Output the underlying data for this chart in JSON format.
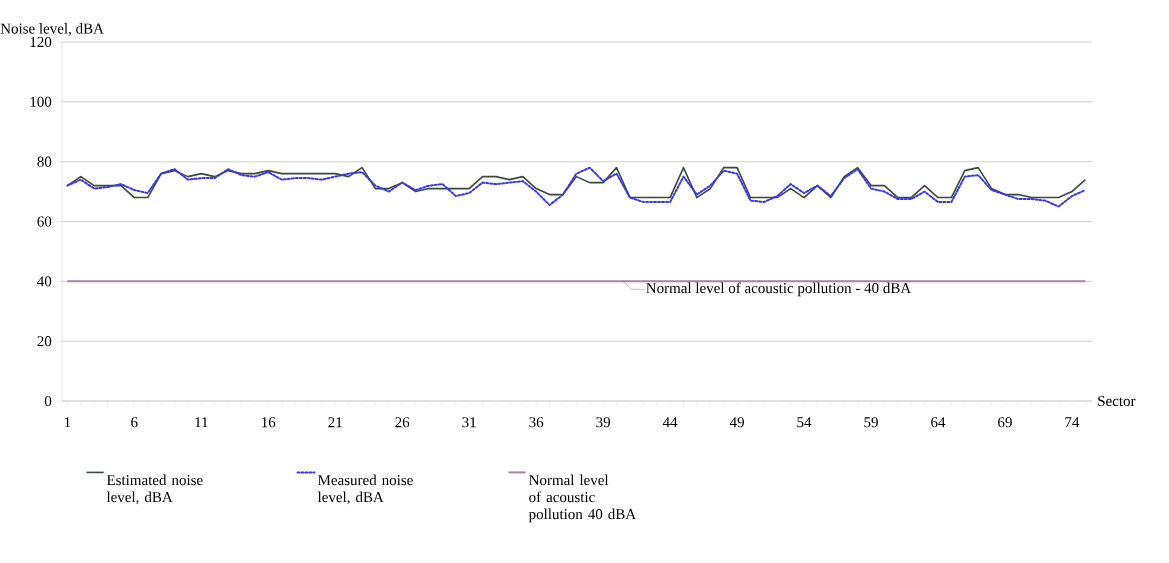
{
  "chart_data": {
    "type": "line",
    "ylabel": "Noise level, dBA",
    "xlabel": "Sector",
    "categories": [
      "1",
      null,
      null,
      null,
      null,
      "6",
      null,
      null,
      null,
      null,
      "11",
      null,
      null,
      null,
      null,
      "16",
      null,
      null,
      null,
      null,
      "21",
      null,
      null,
      null,
      null,
      "26",
      null,
      null,
      null,
      null,
      "31",
      null,
      null,
      null,
      null,
      "36",
      null,
      null,
      null,
      null,
      "39",
      null,
      null,
      null,
      null,
      "44",
      null,
      null,
      null,
      null,
      "49",
      null,
      null,
      null,
      null,
      "54",
      null,
      null,
      null,
      null,
      "59",
      null,
      null,
      null,
      null,
      "64",
      null,
      null,
      null,
      null,
      "69",
      null,
      null,
      null,
      null,
      "74",
      null
    ],
    "series": [
      {
        "name": "Estimated noise level, dBA",
        "color": "#3a4a3c",
        "line_style": "solid",
        "values": [
          72,
          75,
          72,
          72,
          72,
          68,
          68,
          76,
          77,
          75,
          76,
          75,
          77,
          76,
          76,
          77,
          76,
          76,
          76,
          76,
          76,
          75,
          78,
          71,
          71,
          73,
          70,
          71,
          71,
          71,
          71,
          75,
          75,
          74,
          75,
          71,
          69,
          69,
          75,
          73,
          73,
          78,
          68,
          68,
          68,
          68,
          78,
          68,
          71,
          78,
          78,
          68,
          68,
          68,
          71,
          68,
          72,
          68,
          75,
          78,
          72,
          72,
          68,
          68,
          72,
          68,
          68,
          77,
          78,
          71,
          69,
          69,
          68,
          68,
          68,
          70,
          74
        ]
      },
      {
        "name": "Measured noise level, dBA",
        "color": "#3a3ae0",
        "line_style": "dotted",
        "values": [
          72,
          74,
          71,
          71.5,
          72.5,
          70.5,
          69.5,
          76,
          77.5,
          74,
          74.5,
          74.5,
          77.5,
          75.5,
          75,
          76.5,
          74,
          74.5,
          74.5,
          74,
          75,
          76,
          76.5,
          72,
          70,
          73,
          70.5,
          72,
          72.5,
          68.5,
          69.5,
          73,
          72.5,
          73,
          73.5,
          70,
          65.5,
          69,
          76,
          78,
          73.5,
          76,
          68,
          66.5,
          66.5,
          66.5,
          75,
          69,
          72,
          77,
          76,
          67,
          66.5,
          68.5,
          72.5,
          69.5,
          72,
          68.5,
          74.5,
          77.5,
          71,
          70,
          67.5,
          67.5,
          70,
          66.5,
          66.5,
          75,
          75.5,
          70.5,
          69,
          67.5,
          67.5,
          67,
          65,
          68.5,
          70.5
        ]
      }
    ],
    "ref_lines": [
      {
        "axis": "y",
        "value": 40,
        "label": "Normal level of acoustic pollution 40 dBA",
        "color": "#a882a8"
      }
    ],
    "annotations": [
      {
        "text": "Normal level of acoustic pollution - 40 dBA",
        "y": 40
      }
    ],
    "ylim": [
      0,
      120
    ],
    "yticks": [
      0,
      20,
      40,
      60,
      80,
      100,
      120
    ],
    "grid": "y",
    "legend": "bottom",
    "marker": "none"
  }
}
